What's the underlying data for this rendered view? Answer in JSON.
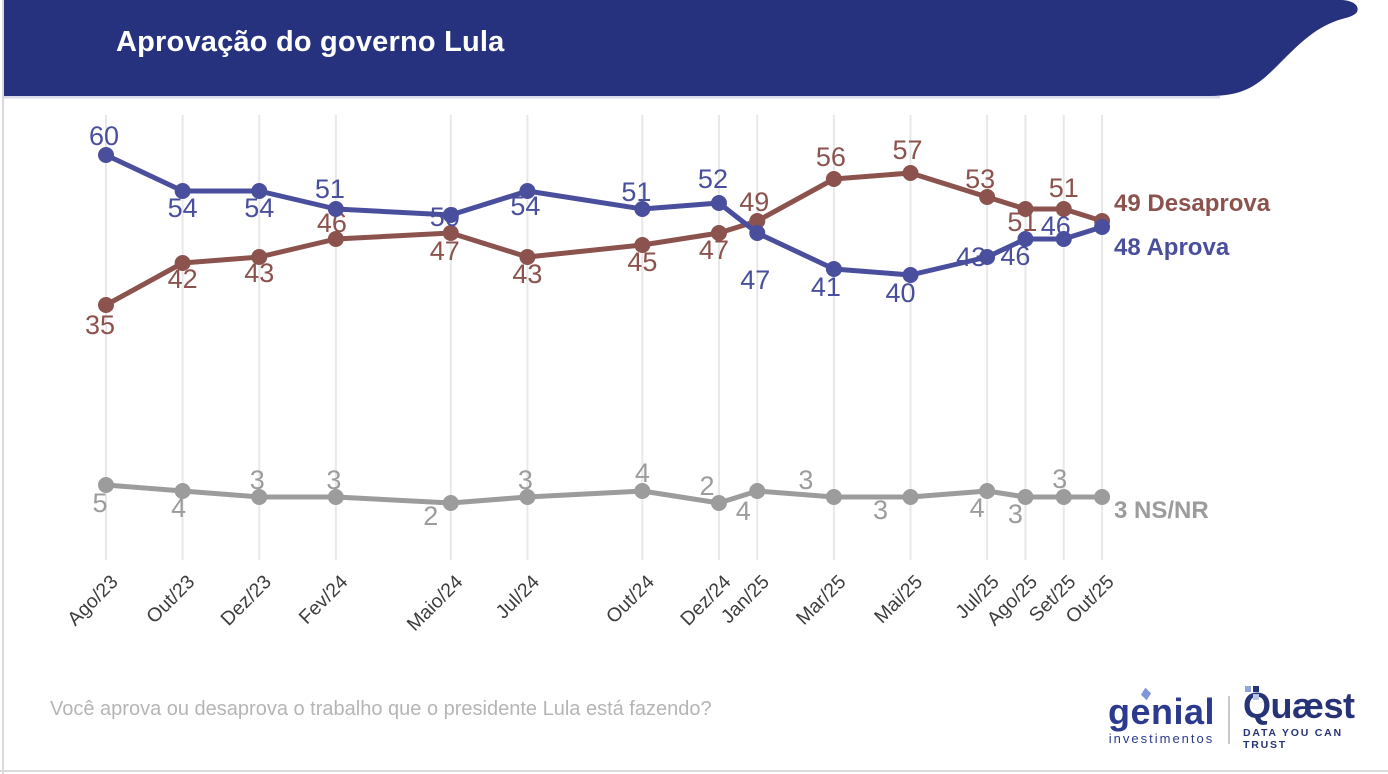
{
  "header": {
    "title": "Aprovação do governo Lula",
    "bg_color": "#27327f"
  },
  "chart_data": {
    "type": "line",
    "title": "Aprovação do governo Lula",
    "categories": [
      "Ago/23",
      "Out/23",
      "Dez/23",
      "Fev/24",
      "Maio/24",
      "Jul/24",
      "Out/24",
      "Dez/24",
      "Jan/25",
      "Mar/25",
      "Mai/25",
      "Jul/25",
      "Ago/25",
      "Set/25",
      "Out/25"
    ],
    "month_positions": [
      0,
      2,
      4,
      6,
      9,
      11,
      14,
      16,
      17,
      19,
      21,
      23,
      24,
      25,
      26
    ],
    "y_unit": "%",
    "grid": "vertical-gridlines-only",
    "legend_position": "right-end-of-lines",
    "series": [
      {
        "name": "Aprova",
        "color": "#4a4f9d",
        "values": [
          60,
          54,
          54,
          51,
          50,
          54,
          51,
          52,
          47,
          41,
          40,
          43,
          46,
          46,
          48
        ],
        "end_label": "48 Aprova",
        "label_offsets": [
          [
            -2,
            -10
          ],
          [
            0,
            26
          ],
          [
            0,
            26
          ],
          [
            -6,
            -11
          ],
          [
            -6,
            11
          ],
          [
            -2,
            24
          ],
          [
            -6,
            -8
          ],
          [
            -6,
            -15
          ],
          [
            -2,
            56
          ],
          [
            -8,
            27
          ],
          [
            -10,
            27
          ],
          [
            -16,
            9
          ],
          [
            -10,
            26
          ],
          [
            -8,
            -4
          ],
          null
        ]
      },
      {
        "name": "Desaprova",
        "color": "#8c534e",
        "values": [
          35,
          42,
          43,
          46,
          47,
          43,
          45,
          47,
          49,
          56,
          57,
          53,
          51,
          51,
          49
        ],
        "end_label": "49 Desaprova",
        "label_offsets": [
          [
            -6,
            29
          ],
          [
            0,
            25
          ],
          [
            0,
            25
          ],
          [
            -4,
            -7
          ],
          [
            -6,
            27
          ],
          [
            0,
            26
          ],
          [
            0,
            26
          ],
          [
            -5,
            26
          ],
          [
            -3,
            -10
          ],
          [
            -3,
            -13
          ],
          [
            -3,
            -14
          ],
          [
            -7,
            -9
          ],
          [
            -3,
            22
          ],
          [
            0,
            -12
          ],
          null
        ]
      },
      {
        "name": "NS/NR",
        "color": "#9c9c9c",
        "values": [
          5,
          4,
          3,
          3,
          2,
          3,
          4,
          2,
          4,
          3,
          3,
          4,
          3,
          3,
          3
        ],
        "end_label": "3 NS/NR",
        "label_offsets": [
          [
            -6,
            27
          ],
          [
            -4,
            26
          ],
          [
            -2,
            -8
          ],
          [
            -2,
            -8
          ],
          [
            -20,
            22
          ],
          [
            -2,
            -8
          ],
          [
            0,
            -9
          ],
          [
            -12,
            -8
          ],
          [
            -14,
            29
          ],
          [
            -28,
            -8
          ],
          [
            -30,
            22
          ],
          [
            -10,
            26
          ],
          [
            -10,
            26
          ],
          [
            -4,
            -9
          ],
          null
        ]
      }
    ]
  },
  "footer": {
    "question": "Você aprova ou desaprova o trabalho que o presidente Lula está fazendo?",
    "genial": {
      "name": "genial",
      "sub": "investimentos"
    },
    "quaest": {
      "name": "Quæst",
      "sub": "DATA YOU CAN TRUST"
    }
  }
}
